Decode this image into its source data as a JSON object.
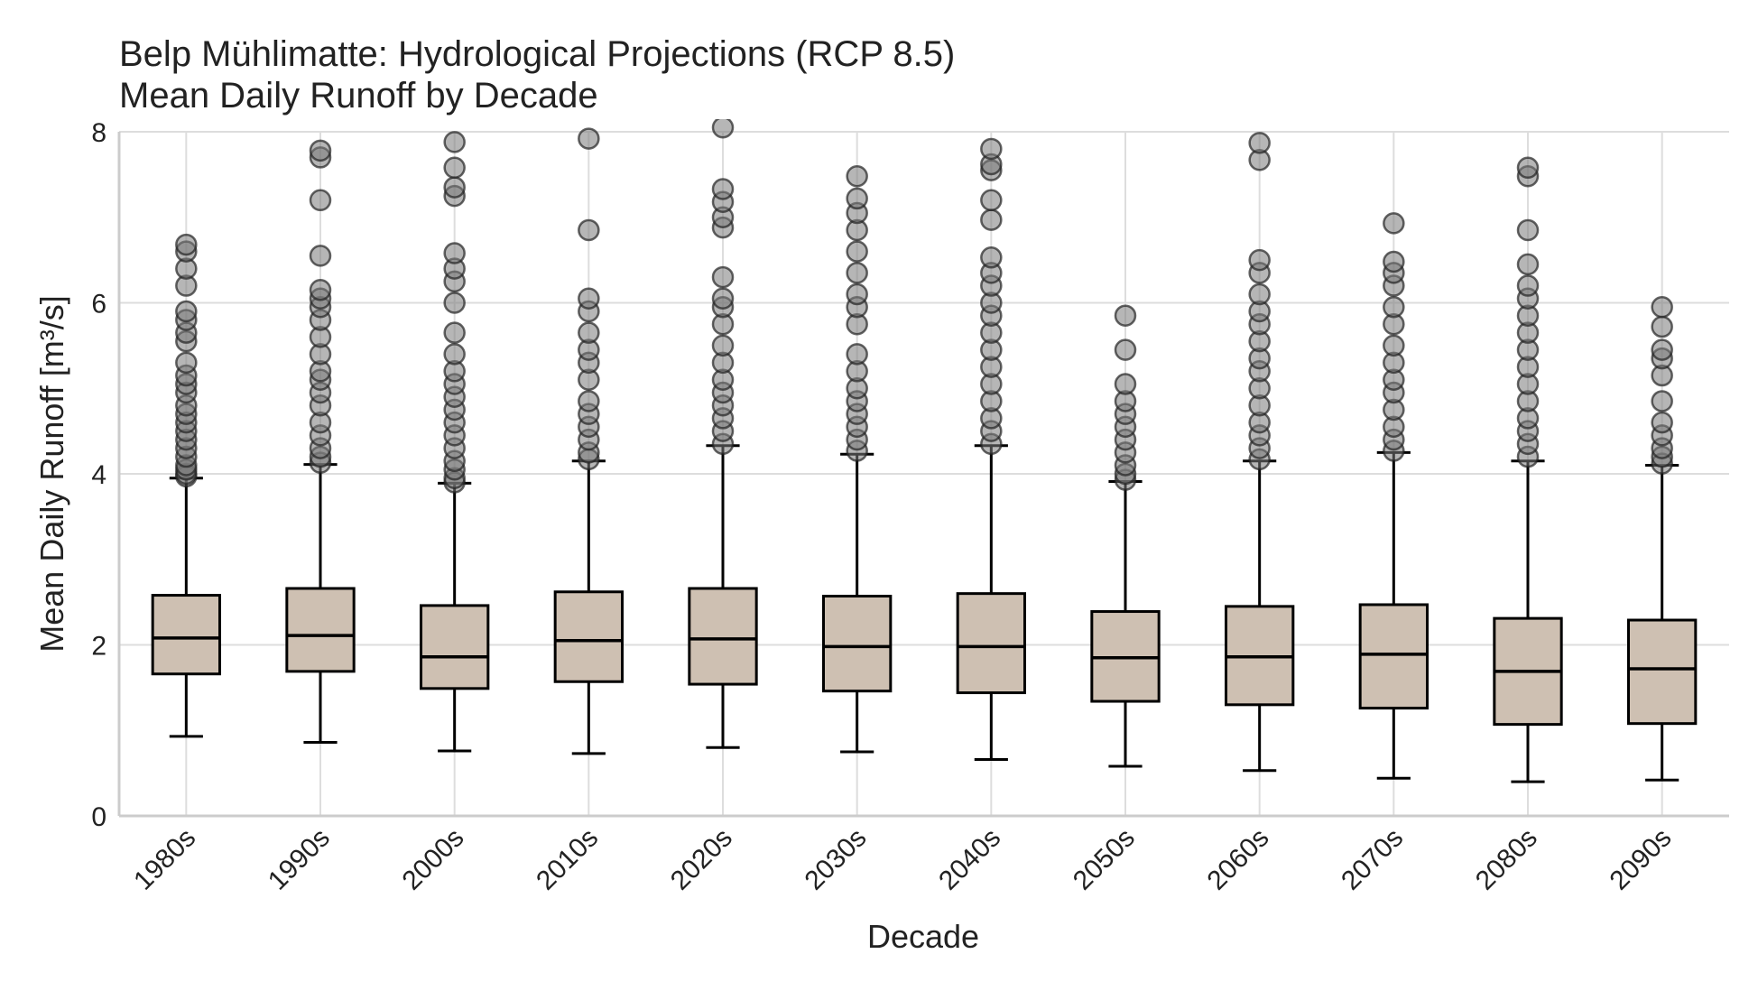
{
  "chart_data": {
    "type": "box",
    "title": [
      "Belp Mühlimatte: Hydrological Projections (RCP 8.5)",
      "Mean Daily Runoff by Decade"
    ],
    "xlabel": "Decade",
    "ylabel": "Mean Daily Runoff [m³/s]",
    "ylim": [
      0,
      8
    ],
    "yticks": [
      "0",
      "2",
      "4",
      "6",
      "8"
    ],
    "grid": true,
    "box_color": "#cec0b2",
    "outlier_color": "#7a7a7a",
    "categories": [
      "1980s",
      "1990s",
      "2000s",
      "2010s",
      "2020s",
      "2030s",
      "2040s",
      "2050s",
      "2060s",
      "2070s",
      "2080s",
      "2090s"
    ],
    "boxes": [
      {
        "whislo": 0.93,
        "q1": 1.66,
        "med": 2.08,
        "q3": 2.58,
        "whishi": 3.95,
        "fliers": [
          3.97,
          4.0,
          4.05,
          4.1,
          4.2,
          4.3,
          4.4,
          4.5,
          4.6,
          4.7,
          4.8,
          4.95,
          5.05,
          5.15,
          5.3,
          5.55,
          5.65,
          5.8,
          5.9,
          6.2,
          6.4,
          6.6,
          6.68
        ]
      },
      {
        "whislo": 0.86,
        "q1": 1.69,
        "med": 2.11,
        "q3": 2.66,
        "whishi": 4.11,
        "fliers": [
          4.13,
          4.2,
          4.3,
          4.45,
          4.6,
          4.8,
          4.95,
          5.1,
          5.2,
          5.4,
          5.6,
          5.8,
          5.95,
          6.05,
          6.15,
          6.55,
          7.2,
          7.7,
          7.78
        ]
      },
      {
        "whislo": 0.76,
        "q1": 1.49,
        "med": 1.86,
        "q3": 2.46,
        "whishi": 3.89,
        "fliers": [
          3.9,
          3.95,
          4.05,
          4.15,
          4.3,
          4.45,
          4.6,
          4.75,
          4.9,
          5.05,
          5.2,
          5.4,
          5.65,
          6.0,
          6.25,
          6.4,
          6.58,
          7.25,
          7.35,
          7.58,
          7.88
        ]
      },
      {
        "whislo": 0.73,
        "q1": 1.57,
        "med": 2.05,
        "q3": 2.62,
        "whishi": 4.15,
        "fliers": [
          4.17,
          4.25,
          4.4,
          4.55,
          4.7,
          4.85,
          5.1,
          5.3,
          5.45,
          5.65,
          5.9,
          6.05,
          6.85,
          7.92
        ]
      },
      {
        "whislo": 0.8,
        "q1": 1.54,
        "med": 2.07,
        "q3": 2.66,
        "whishi": 4.33,
        "fliers": [
          4.35,
          4.5,
          4.65,
          4.8,
          4.95,
          5.1,
          5.3,
          5.5,
          5.75,
          5.95,
          6.05,
          6.3,
          6.88,
          7.0,
          7.18,
          7.33,
          8.1
        ]
      },
      {
        "whislo": 0.75,
        "q1": 1.46,
        "med": 1.98,
        "q3": 2.57,
        "whishi": 4.23,
        "fliers": [
          4.27,
          4.4,
          4.55,
          4.7,
          4.85,
          5.0,
          5.2,
          5.4,
          5.75,
          5.95,
          6.1,
          6.35,
          6.6,
          6.85,
          7.05,
          7.22,
          7.48
        ]
      },
      {
        "whislo": 0.66,
        "q1": 1.44,
        "med": 1.98,
        "q3": 2.6,
        "whishi": 4.33,
        "fliers": [
          4.35,
          4.5,
          4.65,
          4.85,
          5.05,
          5.25,
          5.45,
          5.65,
          5.85,
          6.0,
          6.2,
          6.35,
          6.53,
          6.97,
          7.2,
          7.55,
          7.62,
          7.8
        ]
      },
      {
        "whislo": 0.58,
        "q1": 1.34,
        "med": 1.85,
        "q3": 2.39,
        "whishi": 3.91,
        "fliers": [
          3.93,
          4.0,
          4.1,
          4.25,
          4.4,
          4.55,
          4.7,
          4.85,
          5.05,
          5.45,
          5.85
        ]
      },
      {
        "whislo": 0.53,
        "q1": 1.3,
        "med": 1.86,
        "q3": 2.45,
        "whishi": 4.15,
        "fliers": [
          4.17,
          4.3,
          4.45,
          4.6,
          4.8,
          5.0,
          5.2,
          5.35,
          5.55,
          5.75,
          5.9,
          6.1,
          6.35,
          6.5,
          7.67,
          7.87
        ]
      },
      {
        "whislo": 0.44,
        "q1": 1.26,
        "med": 1.89,
        "q3": 2.47,
        "whishi": 4.25,
        "fliers": [
          4.27,
          4.4,
          4.55,
          4.75,
          4.95,
          5.1,
          5.3,
          5.5,
          5.75,
          5.95,
          6.2,
          6.35,
          6.48,
          6.93
        ]
      },
      {
        "whislo": 0.4,
        "q1": 1.07,
        "med": 1.69,
        "q3": 2.31,
        "whishi": 4.15,
        "fliers": [
          4.2,
          4.35,
          4.5,
          4.65,
          4.85,
          5.05,
          5.25,
          5.45,
          5.65,
          5.85,
          6.05,
          6.2,
          6.45,
          6.85,
          7.48,
          7.58
        ]
      },
      {
        "whislo": 0.42,
        "q1": 1.08,
        "med": 1.72,
        "q3": 2.29,
        "whishi": 4.1,
        "fliers": [
          4.12,
          4.2,
          4.3,
          4.45,
          4.6,
          4.85,
          5.15,
          5.35,
          5.45,
          5.72,
          5.95
        ]
      }
    ]
  }
}
